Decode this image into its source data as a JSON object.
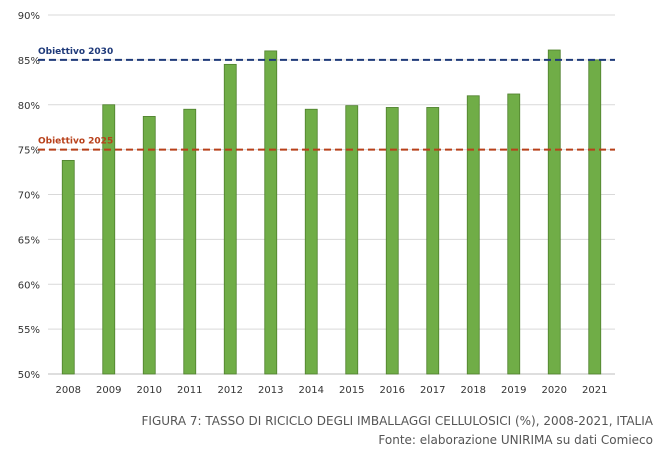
{
  "chart_data": {
    "type": "bar",
    "categories": [
      "2008",
      "2009",
      "2010",
      "2011",
      "2012",
      "2013",
      "2014",
      "2015",
      "2016",
      "2017",
      "2018",
      "2019",
      "2020",
      "2021"
    ],
    "values": [
      73.8,
      80.0,
      78.7,
      79.5,
      84.5,
      86.0,
      79.5,
      79.9,
      79.7,
      79.7,
      81.0,
      81.2,
      86.1,
      85.0
    ],
    "ylim": [
      50,
      90
    ],
    "yticks": [
      "50%",
      "55%",
      "60%",
      "65%",
      "70%",
      "75%",
      "80%",
      "85%",
      "90%"
    ],
    "ytick_values": [
      50,
      55,
      60,
      65,
      70,
      75,
      80,
      85,
      90
    ],
    "grid": true,
    "bar_color": "#70ad47",
    "bar_edge_color": "#4e7f2c",
    "reference_lines": [
      {
        "label": "Obiettivo 2030",
        "value": 85,
        "color": "#1f3a7a"
      },
      {
        "label": "Obiettivo 2025",
        "value": 75,
        "color": "#b8401a"
      }
    ]
  },
  "caption": {
    "title": "FIGURA 7: TASSO DI RICICLO DEGLI IMBALLAGGI CELLULOSICI (%), 2008-2021, ITALIA",
    "source": "Fonte: elaborazione UNIRIMA su dati Comieco"
  }
}
